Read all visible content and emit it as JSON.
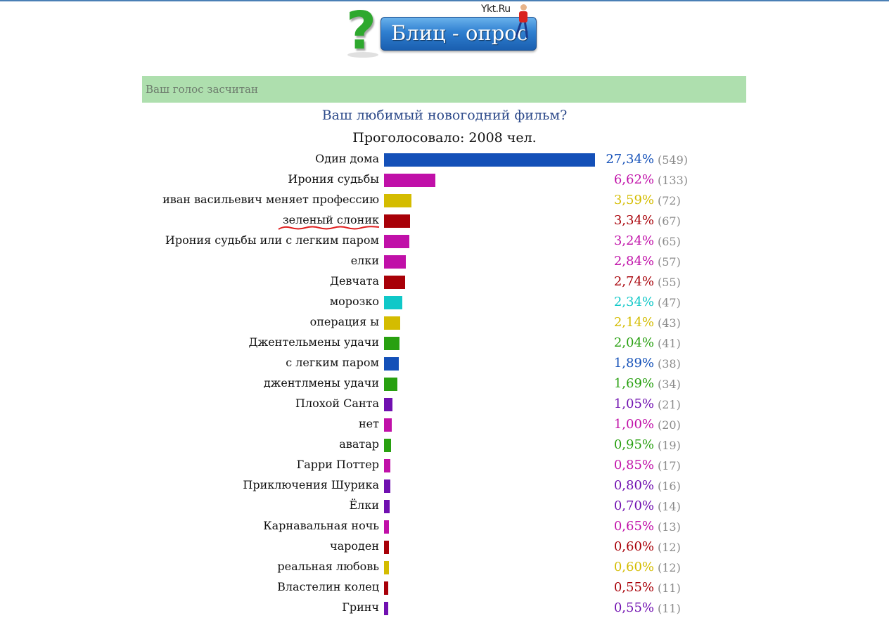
{
  "logo": {
    "text": "Блиц - опрос",
    "brand": "Ykt.Ru",
    "question_icon": "?"
  },
  "banner": {
    "text": "Ваш голос засчитан"
  },
  "question": "Ваш любимый новогодний фильм?",
  "voted_text": "Проголосовало: 2008 чел.",
  "max_percent": 27.34,
  "items": [
    {
      "label": "Один дома",
      "percent": "27,34%",
      "count": "(549)",
      "value": 27.34,
      "color": "#1450b8"
    },
    {
      "label": "Ирония судьбы",
      "percent": "6,62%",
      "count": "(133)",
      "value": 6.62,
      "color": "#c010a8"
    },
    {
      "label": "иван васильевич меняет профессию",
      "percent": "3,59%",
      "count": "(72)",
      "value": 3.59,
      "color": "#d4bc00"
    },
    {
      "label": "зеленый слоник",
      "percent": "3,34%",
      "count": "(67)",
      "value": 3.34,
      "color": "#a80008"
    },
    {
      "label": "Ирония судьбы или с легким паром",
      "percent": "3,24%",
      "count": "(65)",
      "value": 3.24,
      "color": "#c010a8"
    },
    {
      "label": "елки",
      "percent": "2,84%",
      "count": "(57)",
      "value": 2.84,
      "color": "#c010a8"
    },
    {
      "label": "Девчата",
      "percent": "2,74%",
      "count": "(55)",
      "value": 2.74,
      "color": "#a80008"
    },
    {
      "label": "морозко",
      "percent": "2,34%",
      "count": "(47)",
      "value": 2.34,
      "color": "#10c8c8"
    },
    {
      "label": "операция ы",
      "percent": "2,14%",
      "count": "(43)",
      "value": 2.14,
      "color": "#d4bc00"
    },
    {
      "label": "Джентельмены удачи",
      "percent": "2,04%",
      "count": "(41)",
      "value": 2.04,
      "color": "#28a010"
    },
    {
      "label": "с легким паром",
      "percent": "1,89%",
      "count": "(38)",
      "value": 1.89,
      "color": "#1450b8"
    },
    {
      "label": "джентлмены удачи",
      "percent": "1,69%",
      "count": "(34)",
      "value": 1.69,
      "color": "#28a010"
    },
    {
      "label": "Плохой Санта",
      "percent": "1,05%",
      "count": "(21)",
      "value": 1.05,
      "color": "#7010b0"
    },
    {
      "label": "нет",
      "percent": "1,00%",
      "count": "(20)",
      "value": 1.0,
      "color": "#c010a8"
    },
    {
      "label": "аватар",
      "percent": "0,95%",
      "count": "(19)",
      "value": 0.95,
      "color": "#28a010"
    },
    {
      "label": "Гарри Поттер",
      "percent": "0,85%",
      "count": "(17)",
      "value": 0.85,
      "color": "#c010a8"
    },
    {
      "label": "Приключения Шурика",
      "percent": "0,80%",
      "count": "(16)",
      "value": 0.8,
      "color": "#7010b0"
    },
    {
      "label": "Ёлки",
      "percent": "0,70%",
      "count": "(14)",
      "value": 0.7,
      "color": "#7010b0"
    },
    {
      "label": "Карнавальная ночь",
      "percent": "0,65%",
      "count": "(13)",
      "value": 0.65,
      "color": "#c010a8"
    },
    {
      "label": "чароден",
      "percent": "0,60%",
      "count": "(12)",
      "value": 0.6,
      "color": "#a80008"
    },
    {
      "label": "реальная любовь",
      "percent": "0,60%",
      "count": "(12)",
      "value": 0.6,
      "color": "#d4bc00"
    },
    {
      "label": "Властелин колец",
      "percent": "0,55%",
      "count": "(11)",
      "value": 0.55,
      "color": "#a80008"
    },
    {
      "label": "Гринч",
      "percent": "0,55%",
      "count": "(11)",
      "value": 0.55,
      "color": "#7010b0"
    }
  ]
}
